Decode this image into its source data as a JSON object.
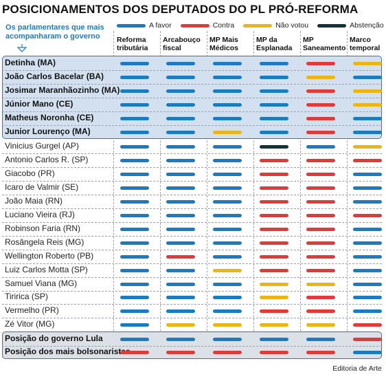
{
  "title": "POSICIONAMENTOS DOS DEPUTADOS DO PL PRÓ-REFORMA",
  "note": "Os parlamentares que mais acompanharam o governo",
  "credit": "Editoria de Arte",
  "colors": {
    "favor": "#1c7bbf",
    "contra": "#e03b3b",
    "nao_votou": "#eab516",
    "abstencao": "#15313a"
  },
  "chart_data": {
    "type": "table",
    "legend": [
      {
        "key": "favor",
        "label": "A favor"
      },
      {
        "key": "contra",
        "label": "Contra"
      },
      {
        "key": "nao_votou",
        "label": "Não votou"
      },
      {
        "key": "abstencao",
        "label": "Abstenção"
      }
    ],
    "columns": [
      "Reforma tributária",
      "Arcabouço fiscal",
      "MP Mais Médicos",
      "MP da Esplanada",
      "MP Saneamento",
      "Marco temporal"
    ],
    "rows": [
      {
        "name": "Detinha (MA)",
        "group": "top",
        "votes": [
          "favor",
          "favor",
          "favor",
          "favor",
          "contra",
          "nao_votou"
        ]
      },
      {
        "name": "João Carlos Bacelar (BA)",
        "group": "top",
        "votes": [
          "favor",
          "favor",
          "favor",
          "favor",
          "nao_votou",
          "favor"
        ]
      },
      {
        "name": "Josimar Maranhãozinho (MA)",
        "group": "top",
        "votes": [
          "favor",
          "favor",
          "favor",
          "favor",
          "contra",
          "nao_votou"
        ]
      },
      {
        "name": "Júnior Mano (CE)",
        "group": "top",
        "votes": [
          "favor",
          "favor",
          "favor",
          "favor",
          "contra",
          "nao_votou"
        ]
      },
      {
        "name": "Matheus Noronha (CE)",
        "group": "top",
        "votes": [
          "favor",
          "favor",
          "favor",
          "favor",
          "contra",
          "favor"
        ]
      },
      {
        "name": "Junior Lourenço (MA)",
        "group": "top",
        "votes": [
          "favor",
          "favor",
          "nao_votou",
          "favor",
          "contra",
          "favor"
        ]
      },
      {
        "name": "Vinicius Gurgel (AP)",
        "group": "normal",
        "votes": [
          "favor",
          "favor",
          "favor",
          "abstencao",
          "favor",
          "nao_votou"
        ]
      },
      {
        "name": "Antonio Carlos R. (SP)",
        "group": "normal",
        "votes": [
          "favor",
          "favor",
          "favor",
          "contra",
          "contra",
          "contra"
        ]
      },
      {
        "name": "Giacobo (PR)",
        "group": "normal",
        "votes": [
          "favor",
          "favor",
          "favor",
          "contra",
          "contra",
          "favor"
        ]
      },
      {
        "name": "Icaro de Valmir (SE)",
        "group": "normal",
        "votes": [
          "favor",
          "favor",
          "favor",
          "contra",
          "contra",
          "favor"
        ]
      },
      {
        "name": "João Maia (RN)",
        "group": "normal",
        "votes": [
          "favor",
          "favor",
          "favor",
          "contra",
          "contra",
          "favor"
        ]
      },
      {
        "name": "Luciano Vieira (RJ)",
        "group": "normal",
        "votes": [
          "favor",
          "favor",
          "favor",
          "contra",
          "contra",
          "contra"
        ]
      },
      {
        "name": "Robinson Faria (RN)",
        "group": "normal",
        "votes": [
          "favor",
          "favor",
          "favor",
          "contra",
          "contra",
          "favor"
        ]
      },
      {
        "name": "Rosângela Reis (MG)",
        "group": "normal",
        "votes": [
          "favor",
          "favor",
          "favor",
          "contra",
          "contra",
          "favor"
        ]
      },
      {
        "name": "Wellington Roberto (PB)",
        "group": "normal",
        "votes": [
          "favor",
          "contra",
          "favor",
          "contra",
          "contra",
          "favor"
        ]
      },
      {
        "name": "Luiz Carlos Motta (SP)",
        "group": "normal",
        "votes": [
          "favor",
          "favor",
          "nao_votou",
          "contra",
          "contra",
          "favor"
        ]
      },
      {
        "name": "Samuel Viana (MG)",
        "group": "normal",
        "votes": [
          "favor",
          "favor",
          "favor",
          "nao_votou",
          "nao_votou",
          "favor"
        ]
      },
      {
        "name": "Tiririca (SP)",
        "group": "normal",
        "votes": [
          "favor",
          "favor",
          "favor",
          "nao_votou",
          "contra",
          "favor"
        ]
      },
      {
        "name": "Vermelho (PR)",
        "group": "normal",
        "votes": [
          "favor",
          "favor",
          "favor",
          "contra",
          "contra",
          "favor"
        ]
      },
      {
        "name": "Zé Vitor (MG)",
        "group": "normal",
        "votes": [
          "favor",
          "nao_votou",
          "nao_votou",
          "nao_votou",
          "nao_votou",
          "contra"
        ]
      },
      {
        "name": "Posição do governo Lula",
        "group": "reference",
        "votes": [
          "favor",
          "favor",
          "favor",
          "favor",
          "favor",
          "contra"
        ]
      },
      {
        "name": "Posição dos mais bolsonaristas",
        "group": "reference",
        "votes": [
          "contra",
          "contra",
          "contra",
          "contra",
          "contra",
          "favor"
        ]
      }
    ]
  }
}
